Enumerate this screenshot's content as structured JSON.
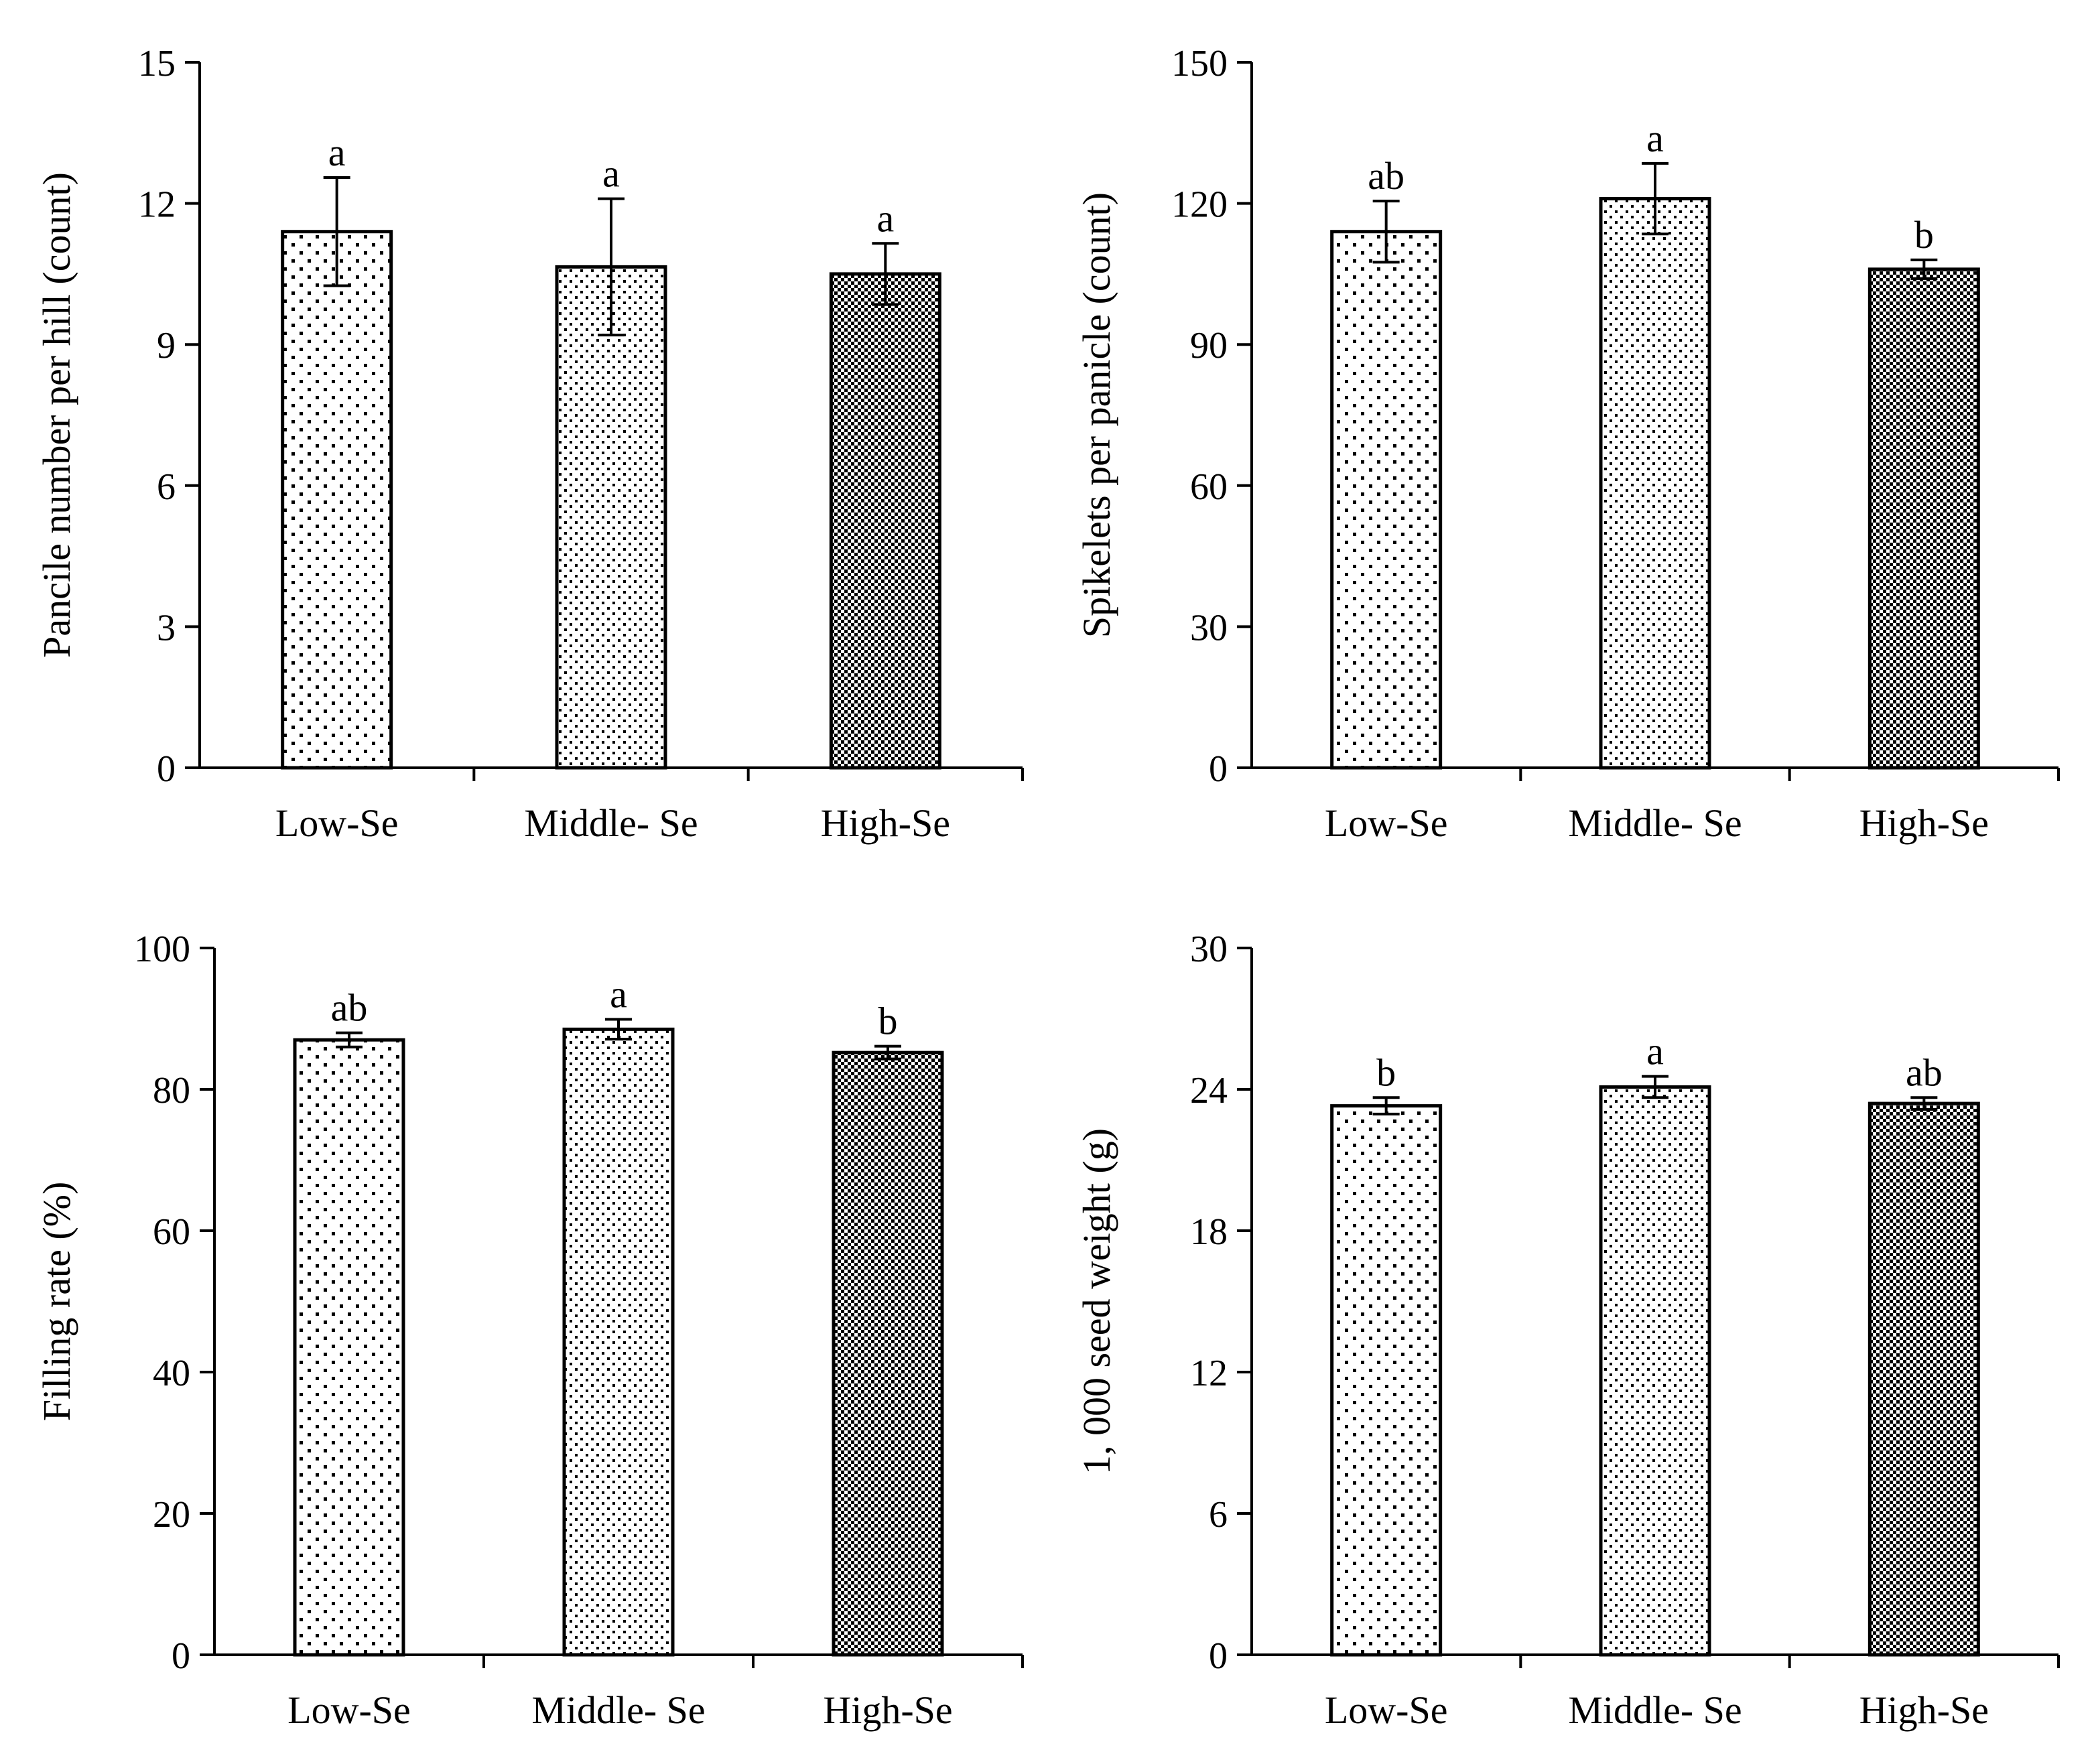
{
  "chart_data": [
    {
      "type": "bar",
      "categories": [
        "Low-Se",
        "Middle- Se",
        "High-Se"
      ],
      "values": [
        11.4,
        10.65,
        10.5
      ],
      "errors": [
        1.15,
        1.45,
        0.65
      ],
      "significance": [
        "a",
        "a",
        "a"
      ],
      "ylabel": "Pancile number per hill (count)",
      "ylim": [
        0,
        15
      ],
      "yticks": [
        0,
        3,
        6,
        9,
        12,
        15
      ],
      "patterns": [
        "sparse-dots",
        "medium-dots",
        "dense-dots"
      ]
    },
    {
      "type": "bar",
      "categories": [
        "Low-Se",
        "Middle- Se",
        "High-Se"
      ],
      "values": [
        114,
        121,
        106
      ],
      "errors": [
        6.5,
        7.5,
        2
      ],
      "significance": [
        "ab",
        "a",
        "b"
      ],
      "ylabel": "Spikelets per panicle (count)",
      "ylim": [
        0,
        150
      ],
      "yticks": [
        0,
        30,
        60,
        90,
        120,
        150
      ],
      "patterns": [
        "sparse-dots",
        "medium-dots",
        "dense-dots"
      ]
    },
    {
      "type": "bar",
      "categories": [
        "Low-Se",
        "Middle- Se",
        "High-Se"
      ],
      "values": [
        87,
        88.5,
        85.2
      ],
      "errors": [
        1.0,
        1.4,
        0.9
      ],
      "significance": [
        "ab",
        "a",
        "b"
      ],
      "ylabel": "Filling rate (%)",
      "ylim": [
        0,
        100
      ],
      "yticks": [
        0,
        20,
        40,
        60,
        80,
        100
      ],
      "patterns": [
        "sparse-dots",
        "medium-dots",
        "dense-dots"
      ]
    },
    {
      "type": "bar",
      "categories": [
        "Low-Se",
        "Middle- Se",
        "High-Se"
      ],
      "values": [
        23.3,
        24.1,
        23.4
      ],
      "errors": [
        0.35,
        0.45,
        0.25
      ],
      "significance": [
        "b",
        "a",
        "ab"
      ],
      "ylabel": "1, 000 seed weight (g)",
      "ylim": [
        0,
        30
      ],
      "yticks": [
        0,
        6,
        12,
        18,
        24,
        30
      ],
      "patterns": [
        "sparse-dots",
        "medium-dots",
        "dense-dots"
      ]
    }
  ]
}
